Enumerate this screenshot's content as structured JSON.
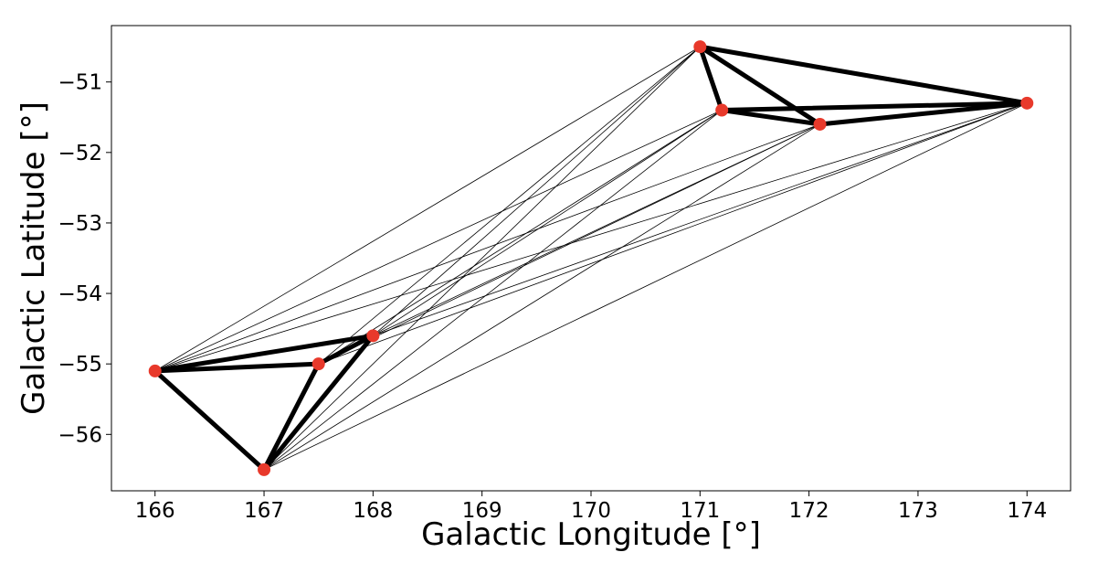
{
  "chart_data": {
    "type": "scatter",
    "xlabel": "Galactic Longitude [°]",
    "ylabel": "Galactic Latitude [°]",
    "xlim": [
      165.6,
      174.4
    ],
    "ylim": [
      -56.8,
      -50.2
    ],
    "xticks": [
      166,
      167,
      168,
      169,
      170,
      171,
      172,
      173,
      174
    ],
    "yticks": [
      -51,
      -52,
      -53,
      -54,
      -55,
      -56
    ],
    "xtick_labels": [
      "166",
      "167",
      "168",
      "169",
      "170",
      "171",
      "172",
      "173",
      "174"
    ],
    "ytick_labels": [
      "−51",
      "−52",
      "−53",
      "−54",
      "−55",
      "−56"
    ],
    "grid": false,
    "point_color": "#e8392b",
    "points": [
      {
        "x": 166.0,
        "y": -55.1
      },
      {
        "x": 167.0,
        "y": -56.5
      },
      {
        "x": 167.5,
        "y": -55.0
      },
      {
        "x": 168.0,
        "y": -54.6
      },
      {
        "x": 171.0,
        "y": -50.5
      },
      {
        "x": 171.2,
        "y": -51.4
      },
      {
        "x": 172.1,
        "y": -51.6
      },
      {
        "x": 174.0,
        "y": -51.3
      }
    ],
    "strong_edges": [
      [
        0,
        1
      ],
      [
        0,
        2
      ],
      [
        0,
        3
      ],
      [
        1,
        2
      ],
      [
        1,
        3
      ],
      [
        2,
        3
      ],
      [
        4,
        5
      ],
      [
        4,
        6
      ],
      [
        4,
        7
      ],
      [
        5,
        6
      ],
      [
        5,
        7
      ],
      [
        6,
        7
      ]
    ],
    "weak_edges": [
      [
        0,
        4
      ],
      [
        0,
        5
      ],
      [
        0,
        6
      ],
      [
        0,
        7
      ],
      [
        1,
        4
      ],
      [
        1,
        5
      ],
      [
        1,
        6
      ],
      [
        1,
        7
      ],
      [
        2,
        4
      ],
      [
        2,
        5
      ],
      [
        2,
        6
      ],
      [
        2,
        7
      ],
      [
        3,
        4
      ],
      [
        3,
        5
      ],
      [
        3,
        6
      ],
      [
        3,
        7
      ]
    ]
  }
}
